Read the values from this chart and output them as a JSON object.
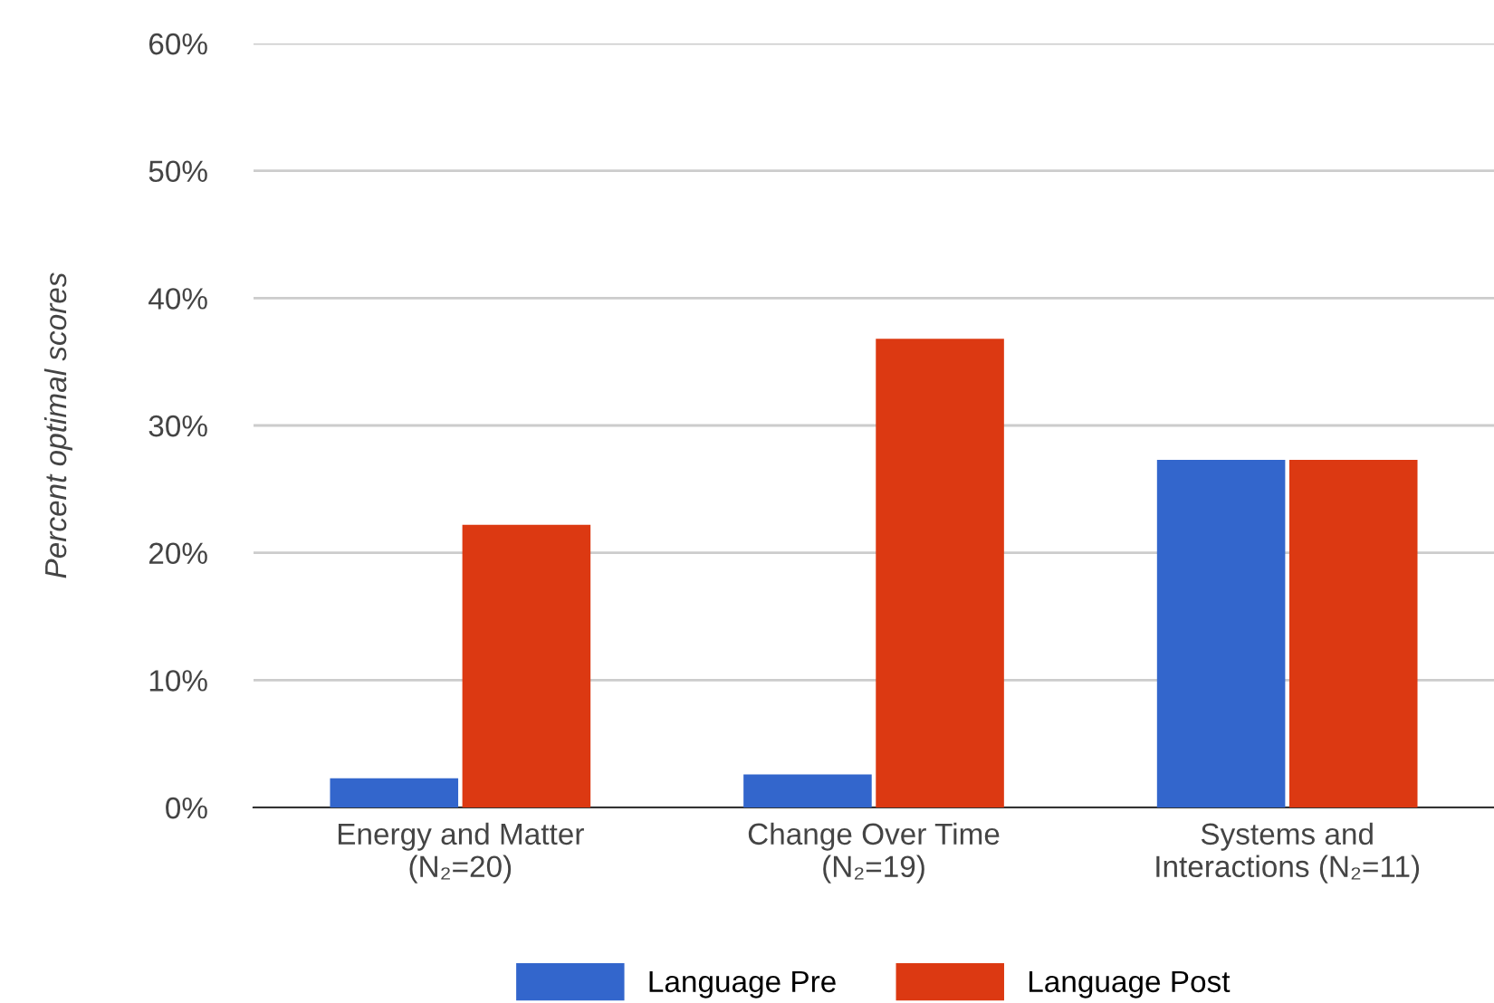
{
  "chart_data": {
    "type": "bar",
    "ylabel": "Percent optimal scores",
    "categories": [
      "Energy and Matter\n(N₂=20)",
      "Change Over Time\n(N₂=19)",
      "Systems and\nInteractions (N₂=11)"
    ],
    "series": [
      {
        "name": "Language Pre",
        "color": "#3366cc",
        "values": [
          2.3,
          2.6,
          27.3
        ]
      },
      {
        "name": "Language Post",
        "color": "#dc3912",
        "values": [
          22.2,
          36.8,
          27.3
        ]
      }
    ],
    "ylim": [
      0,
      60
    ],
    "yticks": [
      {
        "value": 0,
        "label": "0%"
      },
      {
        "value": 10,
        "label": "10%"
      },
      {
        "value": 20,
        "label": "20%"
      },
      {
        "value": 30,
        "label": "30%"
      },
      {
        "value": 40,
        "label": "40%"
      },
      {
        "value": 50,
        "label": "50%"
      },
      {
        "value": 60,
        "label": "60%"
      }
    ],
    "grid": "y",
    "legend": "bottom"
  }
}
